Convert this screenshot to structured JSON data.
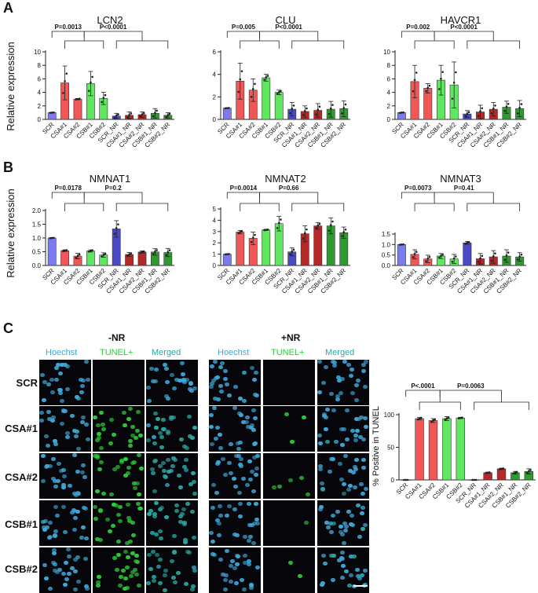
{
  "colors": {
    "scr": "#7b7bef",
    "csa": "#f25757",
    "csb": "#5fe85f",
    "scr_nr": "#4949c4",
    "csa_nr": "#b52828",
    "csb_nr": "#2f9a2f",
    "hoechst": "#3fa8d8",
    "tunel": "#2ecc3a",
    "merged": "#2aa8a0"
  },
  "panels": {
    "A": "A",
    "B": "B",
    "C": "C"
  },
  "panel_c": {
    "groups": [
      {
        "title": "-NR",
        "headers": [
          "Hoechst",
          "TUNEL+",
          "Merged"
        ]
      },
      {
        "title": "+NR",
        "headers": [
          "Hoechst",
          "TUNEL+",
          "Merged"
        ]
      }
    ],
    "rows": [
      "SCR",
      "CSA#1",
      "CSA#2",
      "CSB#1",
      "CSB#2"
    ]
  },
  "chart_data": [
    {
      "type": "bar",
      "panel": "A",
      "title": "LCN2",
      "ylabel": "Relative expression",
      "categories": [
        "SCR",
        "CSA#1",
        "CSA#2",
        "CSB#1",
        "CSB#2",
        "SCR_NR",
        "CSA#1_NR",
        "CSA#2_NR",
        "CSB#1_NR",
        "CSB#2_NR"
      ],
      "values": [
        1.0,
        5.4,
        3.0,
        5.3,
        3.1,
        0.5,
        0.6,
        0.7,
        0.9,
        0.6
      ],
      "errors": [
        0.05,
        2.5,
        0.1,
        1.8,
        0.9,
        0.4,
        0.5,
        0.4,
        0.7,
        0.4
      ],
      "ylim": [
        0,
        10
      ],
      "yticks": [
        0,
        2,
        4,
        6,
        8,
        10
      ],
      "ytick_labels": [
        "0",
        "2",
        "4",
        "6",
        "8",
        "10"
      ],
      "annotations": [
        {
          "text": "P=0.0013",
          "from": 0,
          "to": [
            1,
            2,
            3,
            4
          ]
        },
        {
          "text": "P<0.0001",
          "from": [
            1,
            2,
            3,
            4
          ],
          "to": [
            5,
            6,
            7,
            8,
            9
          ]
        }
      ]
    },
    {
      "type": "bar",
      "panel": "A",
      "title": "CLU",
      "ylabel": "",
      "categories": [
        "SCR",
        "CSA#1",
        "CSA#2",
        "CSB#1",
        "CSB#2",
        "SCR_NR",
        "CSA#1_NR",
        "CSA#2_NR",
        "CSB#1_NR",
        "CSB#2_NR"
      ],
      "values": [
        1.0,
        3.4,
        2.6,
        3.7,
        2.4,
        0.9,
        0.7,
        0.8,
        0.9,
        0.95
      ],
      "errors": [
        0.03,
        1.6,
        1.0,
        0.3,
        0.2,
        0.6,
        0.5,
        0.6,
        0.7,
        0.7
      ],
      "ylim": [
        0,
        6
      ],
      "yticks": [
        0,
        2,
        4,
        6
      ],
      "ytick_labels": [
        "0",
        "2",
        "4",
        "6"
      ],
      "annotations": [
        {
          "text": "P=0.005",
          "from": 0,
          "to": [
            1,
            2,
            3,
            4
          ]
        },
        {
          "text": "P<0.0001",
          "from": [
            1,
            2,
            3,
            4
          ],
          "to": [
            5,
            6,
            7,
            8,
            9
          ]
        }
      ]
    },
    {
      "type": "bar",
      "panel": "A",
      "title": "HAVCR1",
      "ylabel": "",
      "categories": [
        "SCR",
        "CSA#1",
        "CSA#2",
        "CSB#1",
        "CSB#2",
        "SCR_NR",
        "CSA#1_NR",
        "CSA#2_NR",
        "CSB#1_NR",
        "CSB#2_NR"
      ],
      "values": [
        1.0,
        5.6,
        4.6,
        5.8,
        5.1,
        0.8,
        1.1,
        1.5,
        1.8,
        1.6
      ],
      "errors": [
        0.05,
        2.4,
        0.7,
        2.2,
        3.4,
        0.5,
        1.0,
        1.0,
        0.9,
        1.2
      ],
      "ylim": [
        0,
        10
      ],
      "yticks": [
        0,
        2,
        4,
        6,
        8,
        10
      ],
      "ytick_labels": [
        "0",
        "2",
        "4",
        "6",
        "8",
        "10"
      ],
      "annotations": [
        {
          "text": "P=0.002",
          "from": 0,
          "to": [
            1,
            2,
            3,
            4
          ]
        },
        {
          "text": "P<0.0001",
          "from": [
            1,
            2,
            3,
            4
          ],
          "to": [
            5,
            6,
            7,
            8,
            9
          ]
        }
      ]
    },
    {
      "type": "bar",
      "panel": "B",
      "title": "NMNAT1",
      "ylabel": "Relative expression",
      "categories": [
        "SCR",
        "CSA#1",
        "CSA#2",
        "CSB#1",
        "CSB#2",
        "SCR_NR",
        "CSA#1_NR",
        "CSA#2_NR",
        "CSB#1_NR",
        "CSB#2_NR"
      ],
      "values": [
        1.0,
        0.54,
        0.34,
        0.53,
        0.38,
        1.33,
        0.4,
        0.49,
        0.49,
        0.47
      ],
      "errors": [
        0.01,
        0.03,
        0.1,
        0.04,
        0.08,
        0.3,
        0.07,
        0.04,
        0.12,
        0.15
      ],
      "ylim": [
        0,
        2.0
      ],
      "yticks": [
        0,
        0.5,
        1.0,
        1.5,
        2.0
      ],
      "ytick_labels": [
        "0.0",
        "0.5",
        "1.0",
        "1.5",
        "2.0"
      ],
      "annotations": [
        {
          "text": "P=0.0178",
          "from": 0,
          "to": [
            1,
            2,
            3,
            4
          ]
        },
        {
          "text": "P=0.2",
          "from": [
            1,
            2,
            3,
            4
          ],
          "to": [
            5,
            6,
            7,
            8,
            9
          ]
        }
      ]
    },
    {
      "type": "bar",
      "panel": "B",
      "title": "NMNAT2",
      "ylabel": "",
      "categories": [
        "SCR",
        "CSA#1",
        "CSA#2",
        "CSB#1",
        "CSB#2",
        "SCR_NR",
        "CSA#1_NR",
        "CSA#2_NR",
        "CSB#1_NR",
        "CSB#2_NR"
      ],
      "values": [
        1.0,
        2.95,
        2.4,
        3.15,
        3.7,
        1.2,
        2.8,
        3.5,
        3.5,
        2.9
      ],
      "errors": [
        0.02,
        0.15,
        0.55,
        0.05,
        0.65,
        0.35,
        0.7,
        0.3,
        0.7,
        0.5
      ],
      "ylim": [
        0,
        5
      ],
      "yticks": [
        0,
        1,
        2,
        3,
        4,
        5
      ],
      "ytick_labels": [
        "0",
        "1",
        "2",
        "3",
        "4",
        "5"
      ],
      "annotations": [
        {
          "text": "P=0.0014",
          "from": 0,
          "to": [
            1,
            2,
            3,
            4
          ]
        },
        {
          "text": "P=0.66",
          "from": [
            1,
            2,
            3,
            4
          ],
          "to": [
            5,
            6,
            7,
            8,
            9
          ]
        }
      ]
    },
    {
      "type": "bar",
      "panel": "B",
      "title": "NMNAT3",
      "ylabel": "",
      "categories": [
        "SCR",
        "CSA#1",
        "CSA#2",
        "CSB#1",
        "CSB#2",
        "SCR_NR",
        "CSA#1_NR",
        "CSA#2_NR",
        "CSB#1_NR",
        "CSB#2_NR"
      ],
      "values": [
        1.0,
        0.53,
        0.31,
        0.45,
        0.31,
        1.08,
        0.32,
        0.41,
        0.45,
        0.41
      ],
      "errors": [
        0.01,
        0.22,
        0.18,
        0.12,
        0.22,
        0.07,
        0.25,
        0.3,
        0.3,
        0.2
      ],
      "ylim": [
        0,
        1.5
      ],
      "yticks": [
        0,
        0.5,
        1.0,
        1.5
      ],
      "ytick_labels": [
        "0.0",
        "0.5",
        "1.0",
        "1.5"
      ],
      "annotations": [
        {
          "text": "P=0.0073",
          "from": 0,
          "to": [
            1,
            2,
            3,
            4
          ]
        },
        {
          "text": "P=0.41",
          "from": [
            1,
            2,
            3,
            4
          ],
          "to": [
            5,
            6,
            7,
            8,
            9
          ]
        }
      ]
    },
    {
      "type": "bar",
      "panel": "C",
      "title": "",
      "ylabel": "% Positive in TUNEL",
      "categories": [
        "SCR",
        "CSA#1",
        "CSA#2",
        "CSB#1",
        "CSB#2",
        "SCR_NR",
        "CSA#1_NR",
        "CSA#2_NR",
        "CSB#1_NR",
        "CSB#2_NR"
      ],
      "values": [
        0,
        94,
        91,
        94,
        95,
        0,
        11,
        17,
        11,
        13
      ],
      "errors": [
        0,
        2,
        3,
        3,
        1,
        0,
        1,
        1,
        2,
        4
      ],
      "ylim": [
        0,
        100
      ],
      "yticks": [
        0,
        50,
        100
      ],
      "ytick_labels": [
        "0",
        "50",
        "100"
      ],
      "annotations": [
        {
          "text": "P<.0001",
          "from": 0,
          "to": [
            1,
            2,
            3,
            4
          ]
        },
        {
          "text": "P=0.0063",
          "from": [
            1,
            2,
            3,
            4
          ],
          "to": [
            5,
            6,
            7,
            8,
            9
          ]
        }
      ]
    }
  ]
}
